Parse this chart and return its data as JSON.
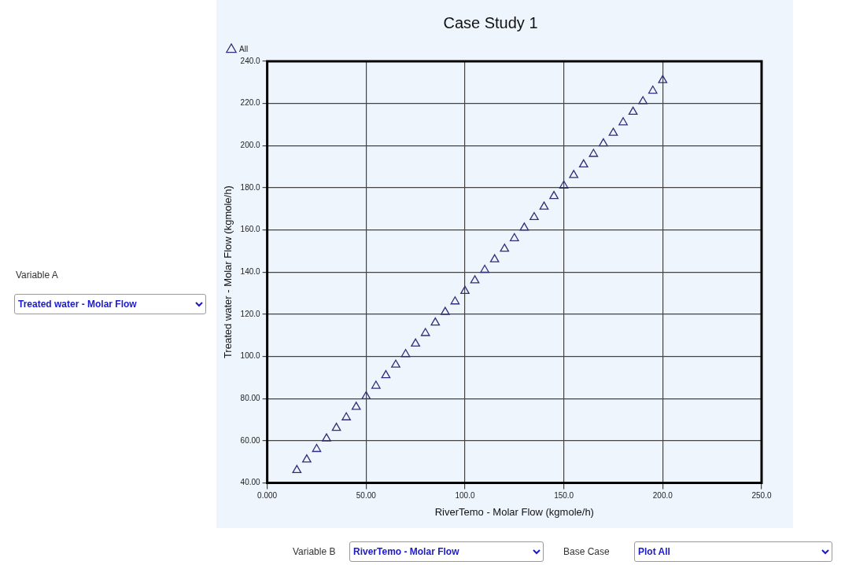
{
  "chart_data": {
    "type": "scatter",
    "title": "Case Study 1",
    "xlabel": "RiverTemo - Molar Flow (kgmole/h)",
    "ylabel": "Treated water - Molar Flow (kgmole/h)",
    "x": [
      15,
      20,
      25,
      30,
      35,
      40,
      45,
      50,
      55,
      60,
      65,
      70,
      75,
      80,
      85,
      90,
      95,
      100,
      105,
      110,
      115,
      120,
      125,
      130,
      135,
      140,
      145,
      150,
      155,
      160,
      165,
      170,
      175,
      180,
      185,
      190,
      195,
      200
    ],
    "series": [
      {
        "name": "All",
        "color": "#2e2e7a",
        "values": [
          46,
          51,
          56,
          61,
          66,
          71,
          76,
          81,
          86,
          91,
          96,
          101,
          106,
          111,
          116,
          121,
          126,
          131,
          136,
          141,
          146,
          151,
          156,
          161,
          166,
          171,
          176,
          181,
          186,
          191,
          196,
          201,
          206,
          211,
          216,
          221,
          226,
          231
        ]
      }
    ],
    "xlim": [
      0,
      250
    ],
    "xticks": [
      {
        "value": 0,
        "label": "0.000"
      },
      {
        "value": 50,
        "label": "50.00"
      },
      {
        "value": 100,
        "label": "100.0"
      },
      {
        "value": 150,
        "label": "150.0"
      },
      {
        "value": 200,
        "label": "200.0"
      },
      {
        "value": 250,
        "label": "250.0"
      }
    ],
    "ylim": [
      40,
      240
    ],
    "yticks": [
      {
        "value": 40,
        "label": "40.00"
      },
      {
        "value": 60,
        "label": "60.00"
      },
      {
        "value": 80,
        "label": "80.00"
      },
      {
        "value": 100,
        "label": "100.0"
      },
      {
        "value": 120,
        "label": "120.0"
      },
      {
        "value": 140,
        "label": "140.0"
      },
      {
        "value": 160,
        "label": "160.0"
      },
      {
        "value": 180,
        "label": "180.0"
      },
      {
        "value": 200,
        "label": "200.0"
      },
      {
        "value": 220,
        "label": "220.0"
      },
      {
        "value": 240,
        "label": "240.0"
      }
    ],
    "grid": true,
    "legend": "top left",
    "marker": "triangle",
    "annotations": [
      "Variable A",
      "Treated water - Molar Flow",
      "Variable B",
      "RiverTemo - Molar Flow",
      "Base Case",
      "Plot All"
    ]
  }
}
